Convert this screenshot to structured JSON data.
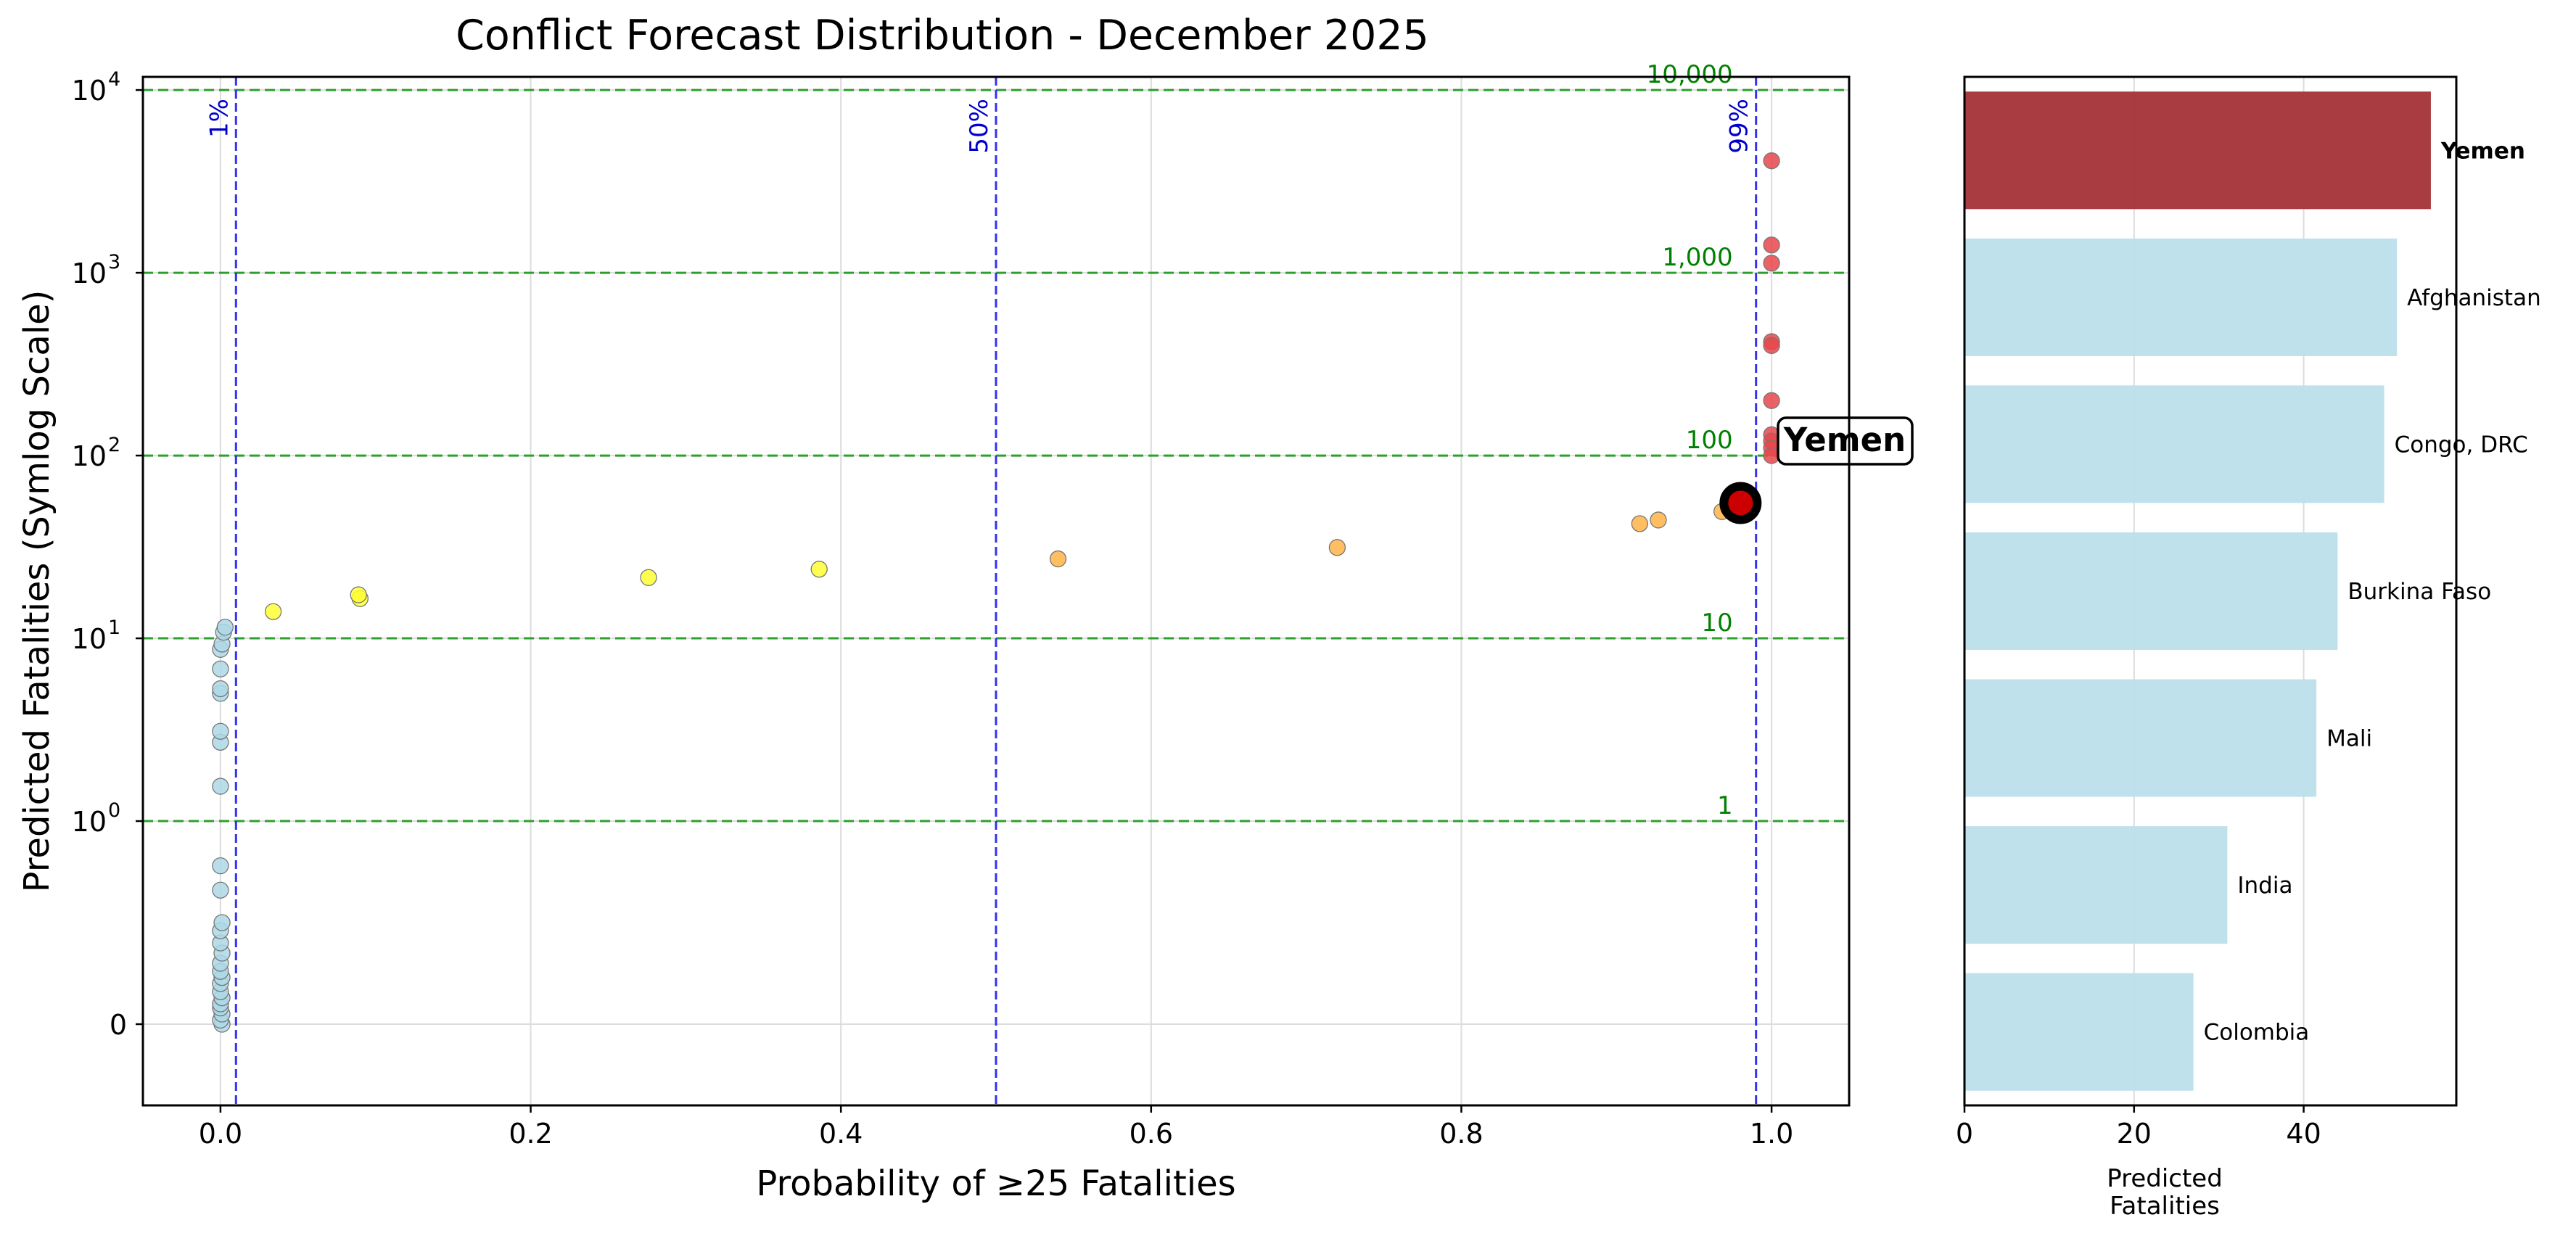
{
  "chart_data": [
    {
      "type": "scatter",
      "title": "Conflict Forecast Distribution - December 2025",
      "xlabel": "Probability of ≥25 Fatalities",
      "ylabel": "Predicted Fatalities (Symlog Scale)",
      "yscale": "symlog",
      "xlim": [
        -0.05,
        1.05
      ],
      "ylim": [
        -0.4,
        11800
      ],
      "grid": true,
      "x_ticks": [
        {
          "value": 0.0,
          "label": "0.0"
        },
        {
          "value": 0.2,
          "label": "0.2"
        },
        {
          "value": 0.4,
          "label": "0.4"
        },
        {
          "value": 0.6,
          "label": "0.6"
        },
        {
          "value": 0.8,
          "label": "0.8"
        },
        {
          "value": 1.0,
          "label": "1.0"
        }
      ],
      "y_ticks": [
        {
          "value": 0,
          "base": "0",
          "exp": ""
        },
        {
          "value": 1,
          "base": "10",
          "exp": "0"
        },
        {
          "value": 10,
          "base": "10",
          "exp": "1"
        },
        {
          "value": 100,
          "base": "10",
          "exp": "2"
        },
        {
          "value": 1000,
          "base": "10",
          "exp": "3"
        },
        {
          "value": 10000,
          "base": "10",
          "exp": "4"
        }
      ],
      "probability_lines": [
        {
          "value": 0.01,
          "label": "1%"
        },
        {
          "value": 0.5,
          "label": "50%"
        },
        {
          "value": 0.99,
          "label": "99%"
        }
      ],
      "fatality_lines": [
        {
          "value": 1,
          "label": "1"
        },
        {
          "value": 10,
          "label": "10"
        },
        {
          "value": 100,
          "label": "100"
        },
        {
          "value": 1000,
          "label": "1,000"
        },
        {
          "value": 10000,
          "label": "10,000"
        }
      ],
      "series": [
        {
          "group": "low",
          "color": "#add8e6",
          "points": [
            [
              0.001,
              0.0
            ],
            [
              0.0,
              0.02
            ],
            [
              0.001,
              0.05
            ],
            [
              0.0,
              0.08
            ],
            [
              0.0,
              0.1
            ],
            [
              0.001,
              0.13
            ],
            [
              0.0,
              0.16
            ],
            [
              0.0,
              0.2
            ],
            [
              0.001,
              0.23
            ],
            [
              0.0,
              0.26
            ],
            [
              0.0,
              0.3
            ],
            [
              0.001,
              0.35
            ],
            [
              0.0,
              0.4
            ],
            [
              0.0,
              0.46
            ],
            [
              0.001,
              0.5
            ],
            [
              0.0,
              0.66
            ],
            [
              0.0,
              0.78
            ],
            [
              0.0,
              1.55
            ],
            [
              0.0,
              2.7
            ],
            [
              0.0,
              3.1
            ],
            [
              0.0,
              5.0
            ],
            [
              0.0,
              5.3
            ],
            [
              0.0,
              6.8
            ],
            [
              0.0,
              8.7
            ],
            [
              0.001,
              9.3
            ],
            [
              0.002,
              10.8
            ],
            [
              0.003,
              11.5
            ]
          ]
        },
        {
          "group": "medium",
          "color": "#ffff33",
          "points": [
            [
              0.034,
              14.0
            ],
            [
              0.09,
              16.5
            ],
            [
              0.089,
              17.3
            ],
            [
              0.276,
              21.5
            ],
            [
              0.386,
              23.9
            ]
          ]
        },
        {
          "group": "high",
          "color": "#ffb347",
          "points": [
            [
              0.54,
              27.2
            ],
            [
              0.72,
              31.4
            ],
            [
              0.915,
              42.4
            ],
            [
              0.927,
              44.4
            ],
            [
              0.968,
              49.4
            ],
            [
              0.975,
              52.0
            ]
          ]
        },
        {
          "group": "very_high",
          "color": "#e8474b",
          "points": [
            [
              1.0,
              4100
            ],
            [
              1.0,
              1420
            ],
            [
              1.0,
              1130
            ],
            [
              1.0,
              420
            ],
            [
              1.0,
              400
            ],
            [
              1.0,
              200
            ],
            [
              1.0,
              130
            ],
            [
              1.0,
              120
            ],
            [
              1.0,
              110
            ],
            [
              1.0,
              100
            ]
          ]
        }
      ],
      "highlight": {
        "name": "Yemen",
        "x": 0.98,
        "y": 55,
        "color": "#cc0000"
      }
    },
    {
      "type": "bar",
      "orientation": "horizontal",
      "xlabel": "Predicted\nFatalities",
      "xlim": [
        0,
        58
      ],
      "x_ticks": [
        0,
        20,
        40
      ],
      "grid": true,
      "categories": [
        "Yemen",
        "Afghanistan",
        "Congo, DRC",
        "Burkina Faso",
        "Mali",
        "India",
        "Colombia"
      ],
      "values": [
        55,
        51,
        49.5,
        44,
        41.5,
        31,
        27
      ],
      "colors": [
        "#a33236",
        "#bcdfea",
        "#bcdfea",
        "#bcdfea",
        "#bcdfea",
        "#bcdfea",
        "#bcdfea"
      ],
      "bold": [
        true,
        false,
        false,
        false,
        false,
        false,
        false
      ]
    }
  ]
}
